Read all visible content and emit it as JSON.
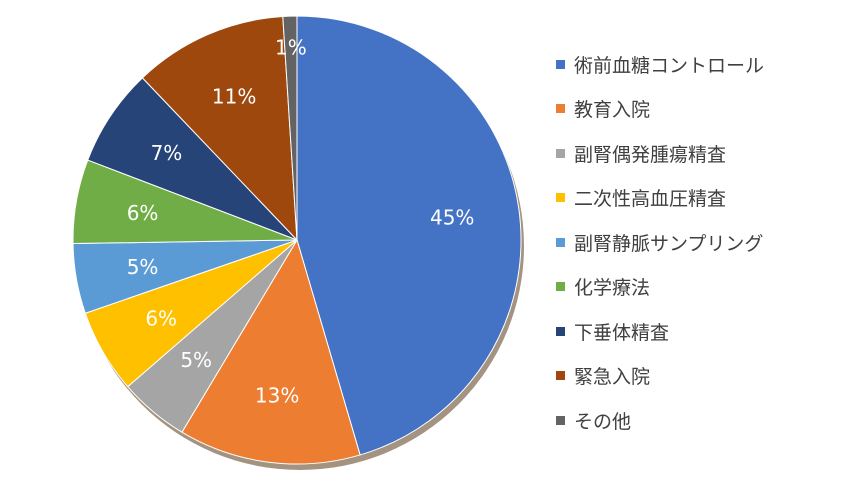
{
  "chart_data": {
    "type": "pie",
    "title": "",
    "slices": [
      {
        "label": "術前血糖コントロール",
        "value": 45,
        "display": "45%",
        "color": "#4472c4"
      },
      {
        "label": "教育入院",
        "value": 13,
        "display": "13%",
        "color": "#ed7d31"
      },
      {
        "label": "副腎偶発腫瘍精査",
        "value": 5,
        "display": "5%",
        "color": "#a5a5a5"
      },
      {
        "label": "二次性高血圧精査",
        "value": 6,
        "display": "6%",
        "color": "#ffc000"
      },
      {
        "label": "副腎静脈サンプリング",
        "value": 5,
        "display": "5%",
        "color": "#5b9bd5"
      },
      {
        "label": "化学療法",
        "value": 6,
        "display": "6%",
        "color": "#70ad47"
      },
      {
        "label": "下垂体精査",
        "value": 7,
        "display": "7%",
        "color": "#264478"
      },
      {
        "label": "緊急入院",
        "value": 11,
        "display": "11%",
        "color": "#9e480e"
      },
      {
        "label": "その他",
        "value": 1,
        "display": "1%",
        "color": "#636363"
      }
    ],
    "start_angle_deg": 0,
    "direction": "clockwise",
    "legend_position": "right"
  }
}
